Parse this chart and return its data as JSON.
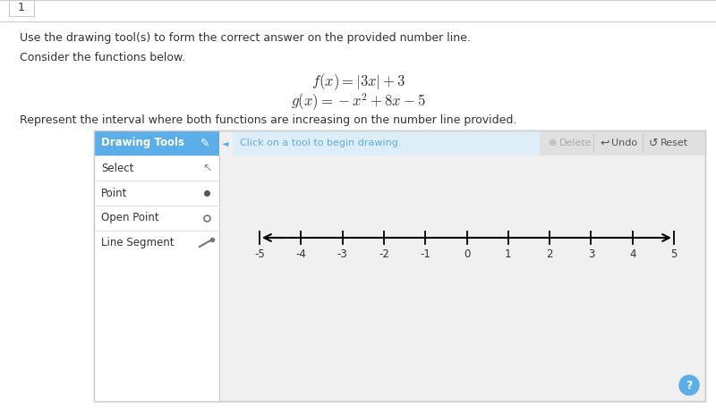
{
  "title_number": "1",
  "instruction_text": "Use the drawing tool(s) to form the correct answer on the provided number line.",
  "consider_text": "Consider the functions below.",
  "formula1": "$f(x) = |3x| + 3$",
  "formula2": "$g(x) = -x^2 + 8x - 5$",
  "represent_text": "Represent the interval where both functions are increasing on the number line provided.",
  "drawing_tools_label": "Drawing Tools",
  "tool_items": [
    "Select",
    "Point",
    "Open Point",
    "Line Segment"
  ],
  "toolbar_text": "Click on a tool to begin drawing.",
  "toolbar_buttons": [
    "Delete",
    "Undo",
    "Reset"
  ],
  "number_line_min": -5,
  "number_line_max": 5,
  "number_line_ticks": [
    -5,
    -4,
    -3,
    -2,
    -1,
    0,
    1,
    2,
    3,
    4,
    5
  ],
  "tools_header_bg": "#5baee8",
  "toolbar_content_bg": "#ddeef8",
  "panel_bg": "#f0f0f0",
  "tools_panel_bg": "#ffffff",
  "btn_area_bg": "#e8e8e8",
  "help_button_color": "#5baee8",
  "background_color": "#ffffff",
  "text_color": "#333333",
  "gray_text": "#aaaaaa",
  "border_color": "#cccccc",
  "separator_color": "#dddddd"
}
